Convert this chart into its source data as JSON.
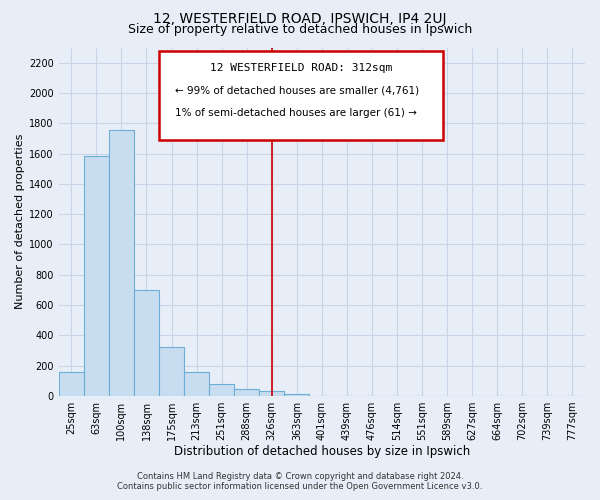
{
  "title": "12, WESTERFIELD ROAD, IPSWICH, IP4 2UJ",
  "subtitle": "Size of property relative to detached houses in Ipswich",
  "xlabel": "Distribution of detached houses by size in Ipswich",
  "ylabel": "Number of detached properties",
  "bar_labels": [
    "25sqm",
    "63sqm",
    "100sqm",
    "138sqm",
    "175sqm",
    "213sqm",
    "251sqm",
    "288sqm",
    "326sqm",
    "363sqm",
    "401sqm",
    "439sqm",
    "476sqm",
    "514sqm",
    "551sqm",
    "589sqm",
    "627sqm",
    "664sqm",
    "702sqm",
    "739sqm",
    "777sqm"
  ],
  "bar_values": [
    160,
    1585,
    1755,
    700,
    320,
    155,
    80,
    45,
    30,
    15,
    0,
    0,
    0,
    0,
    0,
    0,
    0,
    0,
    0,
    0,
    0
  ],
  "bar_color": "#c9ddf0",
  "bar_edge_color": "#6baed6",
  "vline_position": 8.0,
  "vline_color": "#cc0000",
  "ylim": [
    0,
    2300
  ],
  "yticks": [
    0,
    200,
    400,
    600,
    800,
    1000,
    1200,
    1400,
    1600,
    1800,
    2000,
    2200
  ],
  "annotation_title": "12 WESTERFIELD ROAD: 312sqm",
  "annotation_line1": "← 99% of detached houses are smaller (4,761)",
  "annotation_line2": "1% of semi-detached houses are larger (61) →",
  "annotation_box_color": "#ffffff",
  "annotation_box_edge": "#cc0000",
  "footer1": "Contains HM Land Registry data © Crown copyright and database right 2024.",
  "footer2": "Contains public sector information licensed under the Open Government Licence v3.0.",
  "bg_color": "#e8eef7",
  "grid_color": "#c8d4e8",
  "title_fontsize": 10,
  "subtitle_fontsize": 9,
  "xlabel_fontsize": 8.5,
  "ylabel_fontsize": 8,
  "tick_fontsize": 7,
  "footer_fontsize": 6,
  "annot_title_fontsize": 8,
  "annot_line_fontsize": 7.5
}
